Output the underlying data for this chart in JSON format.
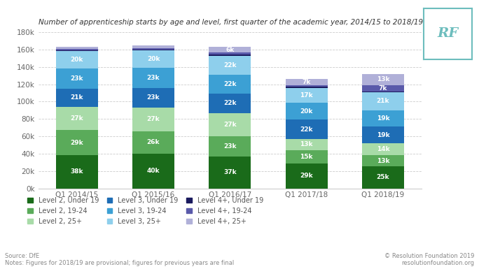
{
  "title": "Number of apprenticeship starts by age and level, first quarter of the academic year, 2014/15 to 2018/19",
  "categories": [
    "Q1 2014/15",
    "Q1 2015/16",
    "Q1 2016/17",
    "Q1 2017/18",
    "Q1 2018/19"
  ],
  "series": {
    "Level 2, Under 19": [
      38000,
      40000,
      37000,
      29000,
      25000
    ],
    "Level 2, 19-24": [
      29000,
      26000,
      23000,
      15000,
      13000
    ],
    "Level 2, 25+": [
      27000,
      27000,
      27000,
      13000,
      14000
    ],
    "Level 3, Under 19": [
      21000,
      23000,
      22000,
      22000,
      19000
    ],
    "Level 3, 19-24": [
      23000,
      23000,
      22000,
      20000,
      19000
    ],
    "Level 3, 25+": [
      20000,
      20000,
      22000,
      17000,
      21000
    ],
    "Level 4+, Under 19": [
      1000,
      1000,
      1000,
      1000,
      1000
    ],
    "Level 4+, 19-24": [
      2000,
      2000,
      3000,
      2000,
      7000
    ],
    "Level 4+, 25+": [
      2000,
      3000,
      6000,
      7000,
      13000
    ]
  },
  "colors": {
    "Level 2, Under 19": "#1a6b1a",
    "Level 2, 19-24": "#5aab5a",
    "Level 2, 25+": "#a8dba8",
    "Level 3, Under 19": "#1e6db5",
    "Level 3, 19-24": "#3ca0d4",
    "Level 3, 25+": "#8ecfec",
    "Level 4+, Under 19": "#1a1a5e",
    "Level 4+, 19-24": "#5a5aaa",
    "Level 4+, 25+": "#b0b0d8"
  },
  "labels": {
    "Level 2, Under 19": [
      "38k",
      "40k",
      "37k",
      "29k",
      "25k"
    ],
    "Level 2, 19-24": [
      "29k",
      "26k",
      "23k",
      "15k",
      "13k"
    ],
    "Level 2, 25+": [
      "27k",
      "27k",
      "27k",
      "13k",
      "14k"
    ],
    "Level 3, Under 19": [
      "21k",
      "23k",
      "22k",
      "22k",
      "19k"
    ],
    "Level 3, 19-24": [
      "23k",
      "23k",
      "22k",
      "20k",
      "19k"
    ],
    "Level 3, 25+": [
      "20k",
      "20k",
      "22k",
      "17k",
      "21k"
    ],
    "Level 4+, Under 19": [
      "",
      "",
      "",
      "",
      ""
    ],
    "Level 4+, 19-24": [
      "",
      "",
      "",
      "",
      "7k"
    ],
    "Level 4+, 25+": [
      "",
      "",
      "6k",
      "7k",
      "13k"
    ]
  },
  "ylim": [
    0,
    180000
  ],
  "yticks": [
    0,
    20000,
    40000,
    60000,
    80000,
    100000,
    120000,
    140000,
    160000,
    180000
  ],
  "source_text": "Source: DfE\nNotes: Figures for 2018/19 are provisional; figures for previous years are final",
  "copyright_text": "© Resolution Foundation 2019\nresolutionfoundation.org",
  "background_color": "#ffffff",
  "bar_width": 0.55,
  "rf_color": "#6dbdbd",
  "legend_order": [
    "Level 2, Under 19",
    "Level 2, 19-24",
    "Level 2, 25+",
    "Level 3, Under 19",
    "Level 3, 19-24",
    "Level 3, 25+",
    "Level 4+, Under 19",
    "Level 4+, 19-24",
    "Level 4+, 25+"
  ]
}
